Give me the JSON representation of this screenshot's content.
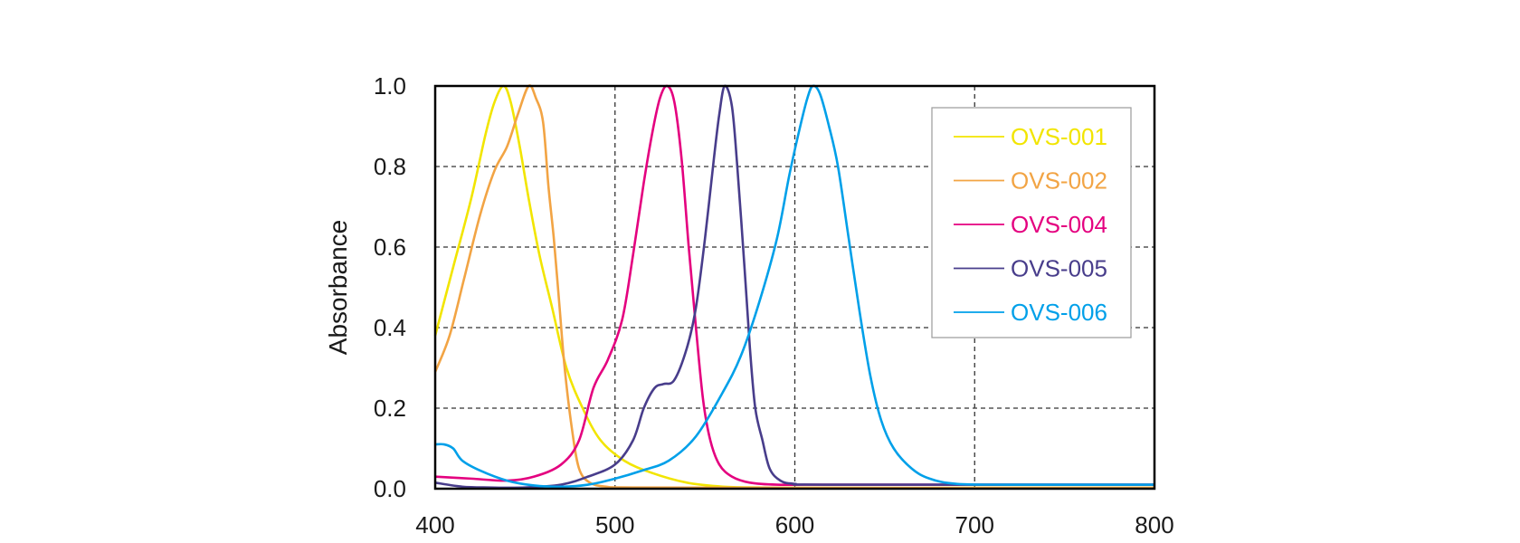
{
  "chart_data": {
    "type": "line",
    "title": "",
    "xlabel": "",
    "ylabel": "Absorbance",
    "xlim": [
      400,
      800
    ],
    "ylim": [
      0.0,
      1.0
    ],
    "x_ticks": [
      "400",
      "500",
      "600",
      "700",
      "800"
    ],
    "y_ticks": [
      "0.0",
      "0.2",
      "0.4",
      "0.6",
      "0.8",
      "1.0"
    ],
    "grid": true,
    "legend_position": "top-right",
    "series": [
      {
        "name": "OVS-001",
        "color": "#f2e500",
        "points": [
          [
            400,
            0.38
          ],
          [
            410,
            0.55
          ],
          [
            420,
            0.72
          ],
          [
            428,
            0.88
          ],
          [
            433,
            0.96
          ],
          [
            438,
            1.0
          ],
          [
            442,
            0.96
          ],
          [
            447,
            0.85
          ],
          [
            452,
            0.72
          ],
          [
            458,
            0.58
          ],
          [
            465,
            0.45
          ],
          [
            473,
            0.3
          ],
          [
            482,
            0.2
          ],
          [
            492,
            0.12
          ],
          [
            505,
            0.07
          ],
          [
            520,
            0.04
          ],
          [
            540,
            0.015
          ],
          [
            560,
            0.005
          ],
          [
            580,
            0.003
          ],
          [
            600,
            0.002
          ],
          [
            700,
            0.002
          ],
          [
            800,
            0.002
          ]
        ]
      },
      {
        "name": "OVS-002",
        "color": "#f2a444",
        "points": [
          [
            400,
            0.29
          ],
          [
            408,
            0.38
          ],
          [
            416,
            0.52
          ],
          [
            425,
            0.68
          ],
          [
            433,
            0.79
          ],
          [
            440,
            0.85
          ],
          [
            446,
            0.93
          ],
          [
            452,
            1.0
          ],
          [
            456,
            0.97
          ],
          [
            460,
            0.91
          ],
          [
            463,
            0.75
          ],
          [
            466,
            0.62
          ],
          [
            469,
            0.46
          ],
          [
            472,
            0.3
          ],
          [
            476,
            0.15
          ],
          [
            480,
            0.05
          ],
          [
            486,
            0.015
          ],
          [
            495,
            0.005
          ],
          [
            510,
            0.003
          ],
          [
            600,
            0.002
          ],
          [
            800,
            0.002
          ]
        ]
      },
      {
        "name": "OVS-004",
        "color": "#e4007f",
        "points": [
          [
            400,
            0.03
          ],
          [
            420,
            0.025
          ],
          [
            440,
            0.02
          ],
          [
            455,
            0.03
          ],
          [
            470,
            0.06
          ],
          [
            480,
            0.12
          ],
          [
            488,
            0.25
          ],
          [
            496,
            0.32
          ],
          [
            504,
            0.42
          ],
          [
            510,
            0.58
          ],
          [
            516,
            0.76
          ],
          [
            521,
            0.89
          ],
          [
            525,
            0.97
          ],
          [
            529,
            1.0
          ],
          [
            533,
            0.96
          ],
          [
            537,
            0.82
          ],
          [
            541,
            0.6
          ],
          [
            545,
            0.4
          ],
          [
            549,
            0.22
          ],
          [
            553,
            0.12
          ],
          [
            558,
            0.06
          ],
          [
            565,
            0.03
          ],
          [
            575,
            0.015
          ],
          [
            590,
            0.01
          ],
          [
            620,
            0.01
          ],
          [
            800,
            0.01
          ]
        ]
      },
      {
        "name": "OVS-005",
        "color": "#483d8b",
        "points": [
          [
            400,
            0.015
          ],
          [
            415,
            0.005
          ],
          [
            430,
            0.003
          ],
          [
            450,
            0.003
          ],
          [
            470,
            0.01
          ],
          [
            485,
            0.03
          ],
          [
            500,
            0.06
          ],
          [
            510,
            0.12
          ],
          [
            516,
            0.2
          ],
          [
            522,
            0.25
          ],
          [
            527,
            0.26
          ],
          [
            533,
            0.27
          ],
          [
            540,
            0.35
          ],
          [
            545,
            0.45
          ],
          [
            550,
            0.62
          ],
          [
            555,
            0.82
          ],
          [
            558,
            0.93
          ],
          [
            561,
            1.0
          ],
          [
            565,
            0.95
          ],
          [
            568,
            0.8
          ],
          [
            572,
            0.55
          ],
          [
            575,
            0.35
          ],
          [
            578,
            0.2
          ],
          [
            582,
            0.12
          ],
          [
            586,
            0.05
          ],
          [
            592,
            0.02
          ],
          [
            600,
            0.012
          ],
          [
            620,
            0.01
          ],
          [
            800,
            0.01
          ]
        ]
      },
      {
        "name": "OVS-006",
        "color": "#00a0e9",
        "points": [
          [
            400,
            0.11
          ],
          [
            405,
            0.11
          ],
          [
            410,
            0.1
          ],
          [
            415,
            0.07
          ],
          [
            425,
            0.045
          ],
          [
            440,
            0.02
          ],
          [
            455,
            0.008
          ],
          [
            470,
            0.005
          ],
          [
            485,
            0.01
          ],
          [
            500,
            0.025
          ],
          [
            515,
            0.045
          ],
          [
            530,
            0.07
          ],
          [
            545,
            0.13
          ],
          [
            560,
            0.24
          ],
          [
            570,
            0.33
          ],
          [
            580,
            0.46
          ],
          [
            590,
            0.62
          ],
          [
            597,
            0.78
          ],
          [
            603,
            0.9
          ],
          [
            607,
            0.97
          ],
          [
            610,
            1.0
          ],
          [
            614,
            0.98
          ],
          [
            619,
            0.9
          ],
          [
            624,
            0.8
          ],
          [
            630,
            0.62
          ],
          [
            636,
            0.44
          ],
          [
            642,
            0.28
          ],
          [
            648,
            0.17
          ],
          [
            655,
            0.1
          ],
          [
            665,
            0.05
          ],
          [
            675,
            0.025
          ],
          [
            690,
            0.012
          ],
          [
            720,
            0.01
          ],
          [
            800,
            0.01
          ]
        ]
      }
    ]
  }
}
